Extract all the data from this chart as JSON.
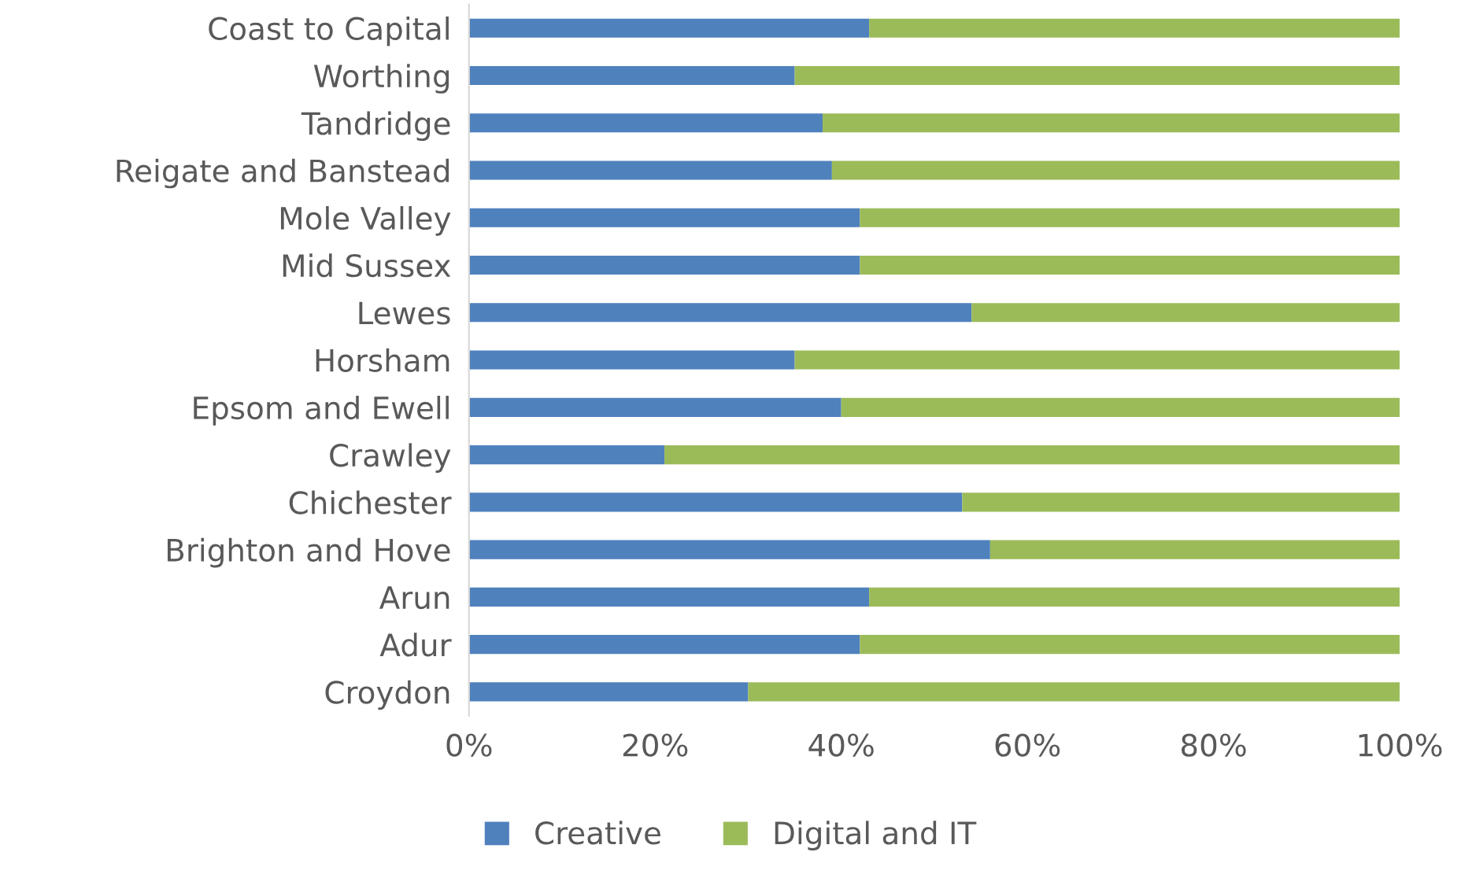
{
  "chart_data": {
    "type": "bar",
    "orientation": "horizontal",
    "stacked": true,
    "categories": [
      "Coast to Capital",
      "Worthing",
      "Tandridge",
      "Reigate and Banstead",
      "Mole Valley",
      "Mid Sussex",
      "Lewes",
      "Horsham",
      "Epsom and Ewell",
      "Crawley",
      "Chichester",
      "Brighton and Hove",
      "Arun",
      "Adur",
      "Croydon"
    ],
    "series": [
      {
        "name": "Creative",
        "color": "#4f81bd",
        "values": [
          43,
          35,
          38,
          39,
          42,
          42,
          54,
          35,
          40,
          21,
          53,
          56,
          43,
          42,
          30
        ]
      },
      {
        "name": "Digital and IT",
        "color": "#9bbb59",
        "values": [
          57,
          65,
          62,
          61,
          58,
          58,
          46,
          65,
          60,
          79,
          47,
          44,
          57,
          58,
          70
        ]
      }
    ],
    "xlim": [
      0,
      100
    ],
    "xticks": [
      {
        "value": 0,
        "label": "0%"
      },
      {
        "value": 20,
        "label": "20%"
      },
      {
        "value": 40,
        "label": "40%"
      },
      {
        "value": 60,
        "label": "60%"
      },
      {
        "value": 80,
        "label": "80%"
      },
      {
        "value": 100,
        "label": "100%"
      }
    ],
    "grid": false,
    "legend": "bottom"
  }
}
